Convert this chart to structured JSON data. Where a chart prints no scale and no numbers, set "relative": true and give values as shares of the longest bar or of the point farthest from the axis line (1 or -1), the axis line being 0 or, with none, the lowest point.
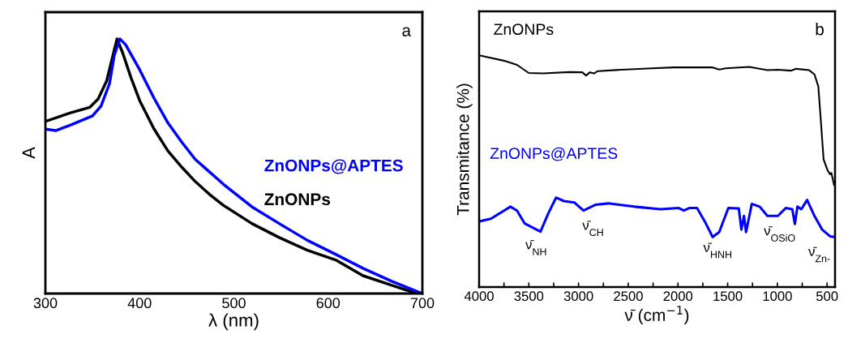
{
  "chart_data": [
    {
      "type": "line",
      "relative": true,
      "xlabel": "λ (nm)",
      "ylabel": "A",
      "xlim": [
        300,
        700
      ],
      "xticks": [
        300,
        400,
        500,
        600,
        700
      ],
      "tick_labels": "x",
      "legend": false,
      "grid": false,
      "annotations": [
        "a"
      ],
      "series": [
        {
          "name": "ZnONPs",
          "color": "#000000",
          "x": [
            300,
            326,
            347,
            356,
            365,
            370.5,
            376,
            382,
            391,
            400,
            415,
            430,
            445,
            459,
            474,
            489,
            519,
            548,
            578,
            608,
            637,
            667,
            690,
            700
          ],
          "values": [
            0.676,
            0.709,
            0.731,
            0.764,
            0.835,
            0.918,
            1.0,
            0.945,
            0.846,
            0.758,
            0.648,
            0.56,
            0.495,
            0.44,
            0.39,
            0.346,
            0.275,
            0.22,
            0.17,
            0.132,
            0.07,
            0.033,
            0.005,
            0.0
          ]
        },
        {
          "name": "ZnONPs@APTES",
          "color": "#0000ff",
          "x": [
            300,
            311,
            329,
            350,
            359,
            368,
            373,
            379,
            385,
            400,
            415,
            430,
            445,
            459,
            474,
            489,
            504,
            519,
            548,
            578,
            608,
            637,
            667,
            700
          ],
          "values": [
            0.646,
            0.64,
            0.665,
            0.698,
            0.736,
            0.824,
            0.934,
            1.0,
            0.978,
            0.879,
            0.769,
            0.67,
            0.593,
            0.527,
            0.478,
            0.429,
            0.385,
            0.341,
            0.275,
            0.209,
            0.154,
            0.099,
            0.049,
            0.0
          ]
        }
      ]
    },
    {
      "type": "line",
      "relative": true,
      "xlabel": "ν̄ (cm$^{−1}$)",
      "ylabel": "Transmitance (%)",
      "xlim": [
        4000,
        420
      ],
      "xticks": [
        4000,
        {
          "value": 3750,
          "label": null
        },
        3500,
        {
          "value": 3250,
          "label": null
        },
        3000,
        {
          "value": 2750,
          "label": null
        },
        2500,
        {
          "value": 2250,
          "label": null
        },
        2000,
        {
          "value": 1750,
          "label": null
        },
        1500,
        {
          "value": 1250,
          "label": null
        },
        1000,
        {
          "value": 750,
          "label": null
        },
        500
      ],
      "tick_labels": "x",
      "legend": false,
      "grid": false,
      "annotations": [
        "b",
        "ν̄$_{NH}$",
        "ν̄$_{CH}$",
        "ν̄$_{HNH}$",
        "ν̄$_{OSiO}$",
        "ν̄$_{Zn-}$"
      ],
      "series": [
        {
          "name": "ZnONPs",
          "color": "#000000",
          "x": [
            4000,
            3751,
            3619,
            3501,
            3357,
            3094,
            2963,
            2924,
            2885,
            2845,
            2806,
            2570,
            2307,
            2045,
            1651,
            1585,
            1520,
            1283,
            1100,
            995,
            864,
            811,
            680,
            627,
            588,
            562,
            535,
            496,
            470,
            457,
            430
          ],
          "values": [
            1.0,
            0.977,
            0.959,
            0.924,
            0.922,
            0.928,
            0.927,
            0.913,
            0.927,
            0.922,
            0.932,
            0.938,
            0.943,
            0.948,
            0.948,
            0.939,
            0.944,
            0.95,
            0.936,
            0.938,
            0.934,
            0.942,
            0.936,
            0.918,
            0.866,
            0.714,
            0.551,
            0.505,
            0.487,
            0.493,
            0.441
          ]
        },
        {
          "name": "ZnONPs@APTES",
          "color": "#0000ff",
          "x": [
            4000,
            3882,
            3685,
            3619,
            3541,
            3383,
            3304,
            3226,
            3147,
            3042,
            2950,
            2832,
            2701,
            2438,
            2176,
            1992,
            1940,
            1887,
            1808,
            1730,
            1651,
            1585,
            1493,
            1388,
            1362,
            1336,
            1315,
            1257,
            1178,
            1100,
            995,
            916,
            850,
            824,
            798,
            759,
            701,
            627,
            549,
            470,
            423
          ],
          "values": [
            0.283,
            0.295,
            0.347,
            0.33,
            0.274,
            0.239,
            0.318,
            0.386,
            0.371,
            0.365,
            0.33,
            0.355,
            0.361,
            0.347,
            0.336,
            0.341,
            0.33,
            0.341,
            0.341,
            0.283,
            0.216,
            0.237,
            0.341,
            0.339,
            0.248,
            0.307,
            0.237,
            0.359,
            0.347,
            0.307,
            0.307,
            0.341,
            0.336,
            0.272,
            0.347,
            0.336,
            0.376,
            0.307,
            0.248,
            0.219,
            0.216
          ]
        }
      ]
    }
  ]
}
